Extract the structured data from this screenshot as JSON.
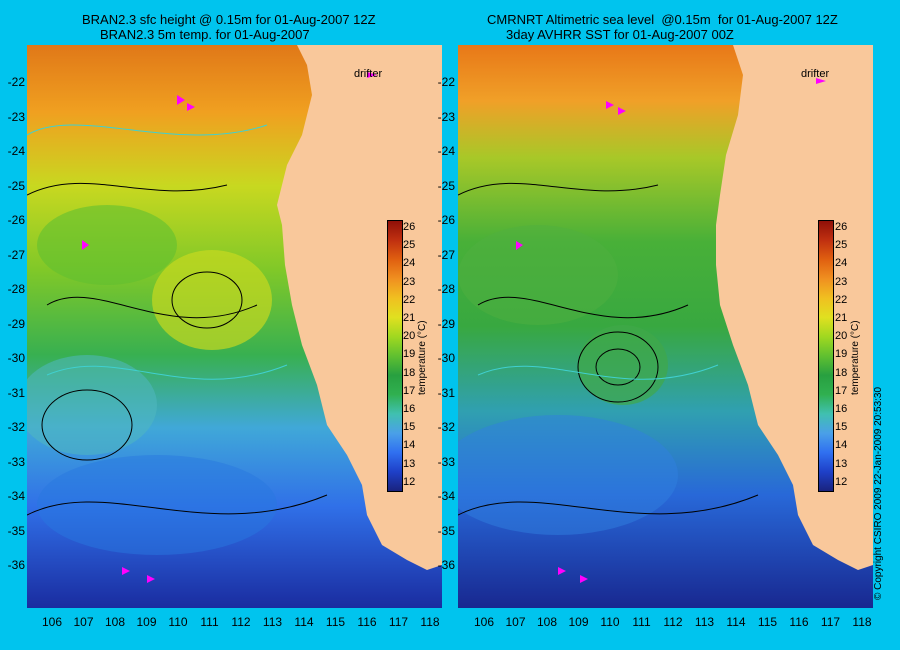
{
  "left_panel": {
    "title_line1": "BRAN2.3 sfc height @ 0.15m for 01-Aug-2007 12Z",
    "title_line2": "BRAN2.3 5m temp. for 01-Aug-2007",
    "drifter_label": "drifter"
  },
  "right_panel": {
    "title_line1": "CMRNRT Altimetric sea level  @0.15m  for 01-Aug-2007 12Z",
    "title_line2": "3day AVHRR SST for 01-Aug-2007 00Z",
    "drifter_label": "drifter"
  },
  "latitudes": [
    "-22",
    "-23",
    "-24",
    "-25",
    "-26",
    "-27",
    "-28",
    "-29",
    "-30",
    "-31",
    "-32",
    "-33",
    "-34",
    "-35",
    "-36"
  ],
  "longitudes": [
    "106",
    "107",
    "108",
    "109",
    "110",
    "111",
    "112",
    "113",
    "114",
    "115",
    "116",
    "117",
    "118"
  ],
  "colorbar": {
    "title": "temperature (°C)",
    "ticks": [
      "26",
      "25",
      "24",
      "23",
      "22",
      "21",
      "20",
      "19",
      "18",
      "17",
      "16",
      "15",
      "14",
      "13",
      "12"
    ],
    "colors": [
      "#1a237e",
      "#1e40c8",
      "#3070f0",
      "#4aa0e8",
      "#40c0b0",
      "#30b050",
      "#28a040",
      "#60c030",
      "#a0d820",
      "#e0e020",
      "#f0c020",
      "#f09020",
      "#e06010",
      "#c03010",
      "#901008"
    ]
  },
  "copyright": "© Copyright CSIRO 2009   22-Jan-2009 20:53:30",
  "colors": {
    "background": "#00c4ee",
    "land": "#f9c89b",
    "drifter": "#ff00ff",
    "contour": "#000000",
    "isobath": "#40d0d0"
  }
}
